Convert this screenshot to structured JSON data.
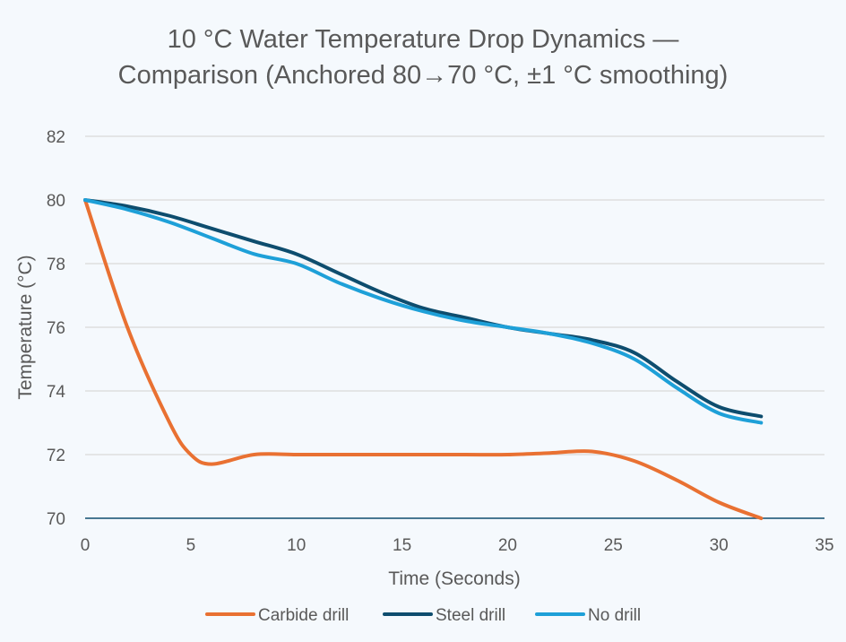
{
  "chart_data": {
    "type": "line",
    "title_lines": [
      "10 °C Water Temperature Drop Dynamics —",
      "Comparison (Anchored 80→70 °C, ±1 °C smoothing)"
    ],
    "xlabel": "Time (Seconds)",
    "ylabel": "Temperature (°C)",
    "xlim": [
      0,
      35
    ],
    "ylim": [
      70,
      82
    ],
    "xticks": [
      0,
      5,
      10,
      15,
      20,
      25,
      30,
      35
    ],
    "yticks": [
      70,
      72,
      74,
      76,
      78,
      80,
      82
    ],
    "grid": "horizontal",
    "legend_position": "bottom",
    "series": [
      {
        "name": "Carbide drill",
        "color": "#e97132",
        "x": [
          0,
          2,
          4,
          5,
          6,
          8,
          10,
          12,
          14,
          16,
          18,
          20,
          22,
          24,
          26,
          28,
          30,
          32
        ],
        "y": [
          80,
          76,
          73,
          72,
          71.7,
          72,
          72,
          72,
          72,
          72,
          72,
          72,
          72.05,
          72.1,
          71.8,
          71.2,
          70.5,
          70
        ]
      },
      {
        "name": "Steel drill",
        "color": "#0e4d6e",
        "x": [
          0,
          2,
          4,
          6,
          8,
          10,
          12,
          14,
          16,
          18,
          20,
          22,
          24,
          26,
          28,
          30,
          32
        ],
        "y": [
          80,
          79.8,
          79.5,
          79.1,
          78.7,
          78.3,
          77.7,
          77.1,
          76.6,
          76.3,
          76,
          75.8,
          75.6,
          75.2,
          74.3,
          73.5,
          73.2
        ]
      },
      {
        "name": "No drill",
        "color": "#1ea0d8",
        "x": [
          0,
          2,
          4,
          6,
          8,
          10,
          12,
          14,
          16,
          18,
          20,
          22,
          24,
          26,
          28,
          30,
          32
        ],
        "y": [
          80,
          79.7,
          79.3,
          78.8,
          78.3,
          78,
          77.4,
          76.9,
          76.5,
          76.2,
          76,
          75.8,
          75.5,
          75,
          74.1,
          73.3,
          73
        ]
      }
    ]
  }
}
